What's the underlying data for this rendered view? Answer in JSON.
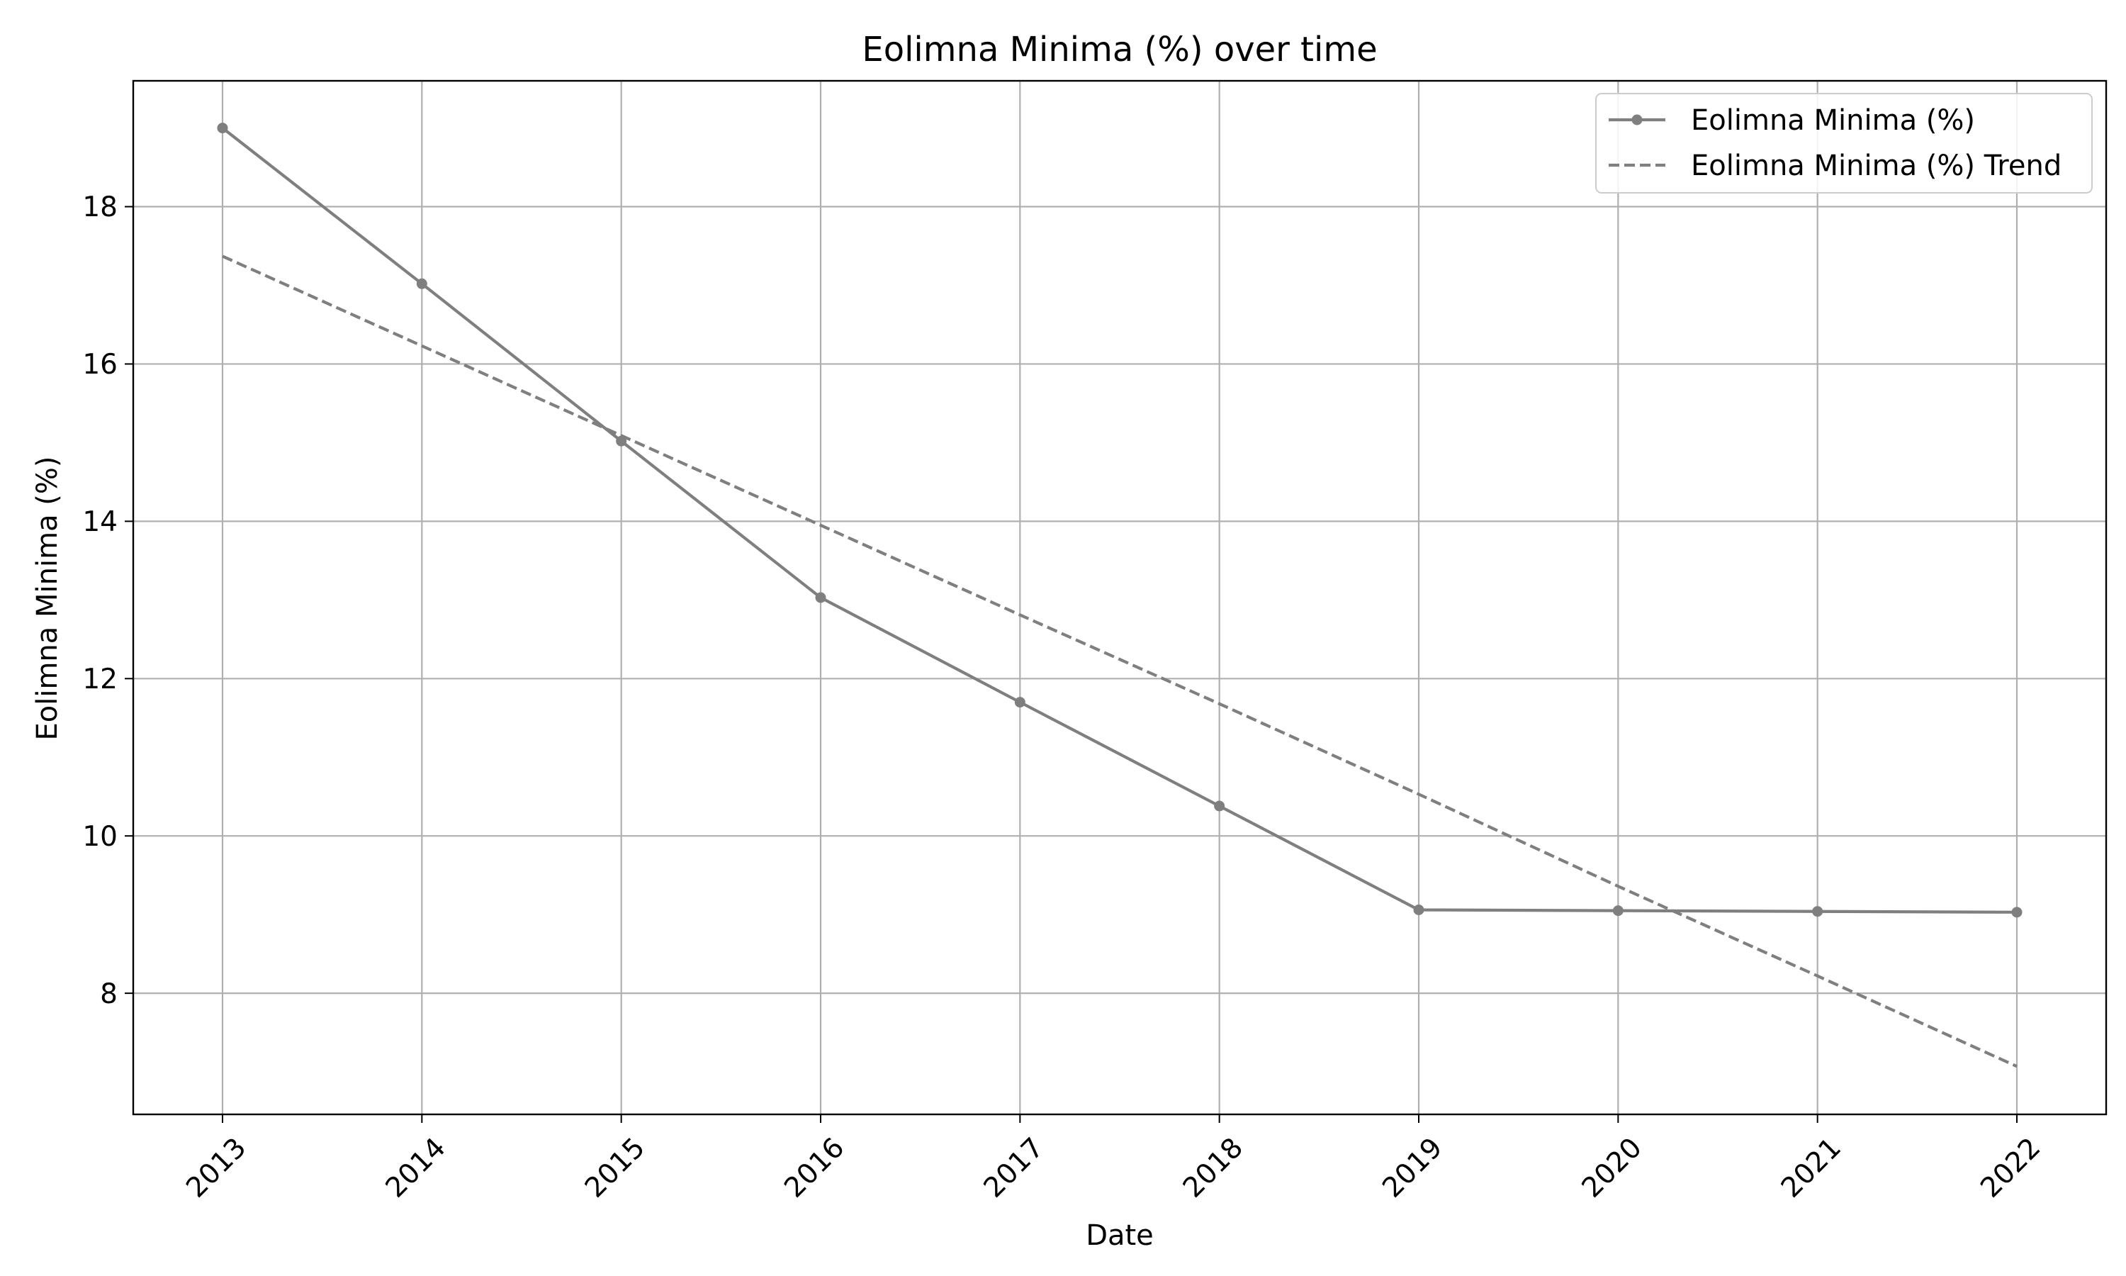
{
  "chart_data": {
    "type": "line",
    "title": "Eolimna Minima (%) over time",
    "xlabel": "Date",
    "ylabel": "Eolimna Minima (%)",
    "x": [
      "2013",
      "2014",
      "2015",
      "2016",
      "2017",
      "2018",
      "2019",
      "2020",
      "2021",
      "2022"
    ],
    "x_ticks": [
      "2013",
      "2014",
      "2015",
      "2016",
      "2017",
      "2018",
      "2019",
      "2020",
      "2021",
      "2022"
    ],
    "x_tick_rotation": 45,
    "y_ticks": [
      8,
      10,
      12,
      14,
      16,
      18
    ],
    "ylim": [
      6.46,
      19.6
    ],
    "grid": true,
    "legend_position": "top-right",
    "series": [
      {
        "name": "Eolimna Minima (%)",
        "style": "solid",
        "marker": "circle",
        "color": "#7f7f7f",
        "values": [
          19.0,
          17.02,
          15.02,
          13.03,
          11.7,
          10.38,
          9.06,
          9.05,
          9.04,
          9.03
        ]
      },
      {
        "name": "Eolimna Minima (%) Trend",
        "style": "dashed",
        "marker": "none",
        "color": "#7f7f7f",
        "values": [
          17.37,
          16.23,
          15.09,
          13.95,
          12.81,
          11.68,
          10.53,
          9.36,
          8.22,
          7.07
        ]
      }
    ]
  }
}
